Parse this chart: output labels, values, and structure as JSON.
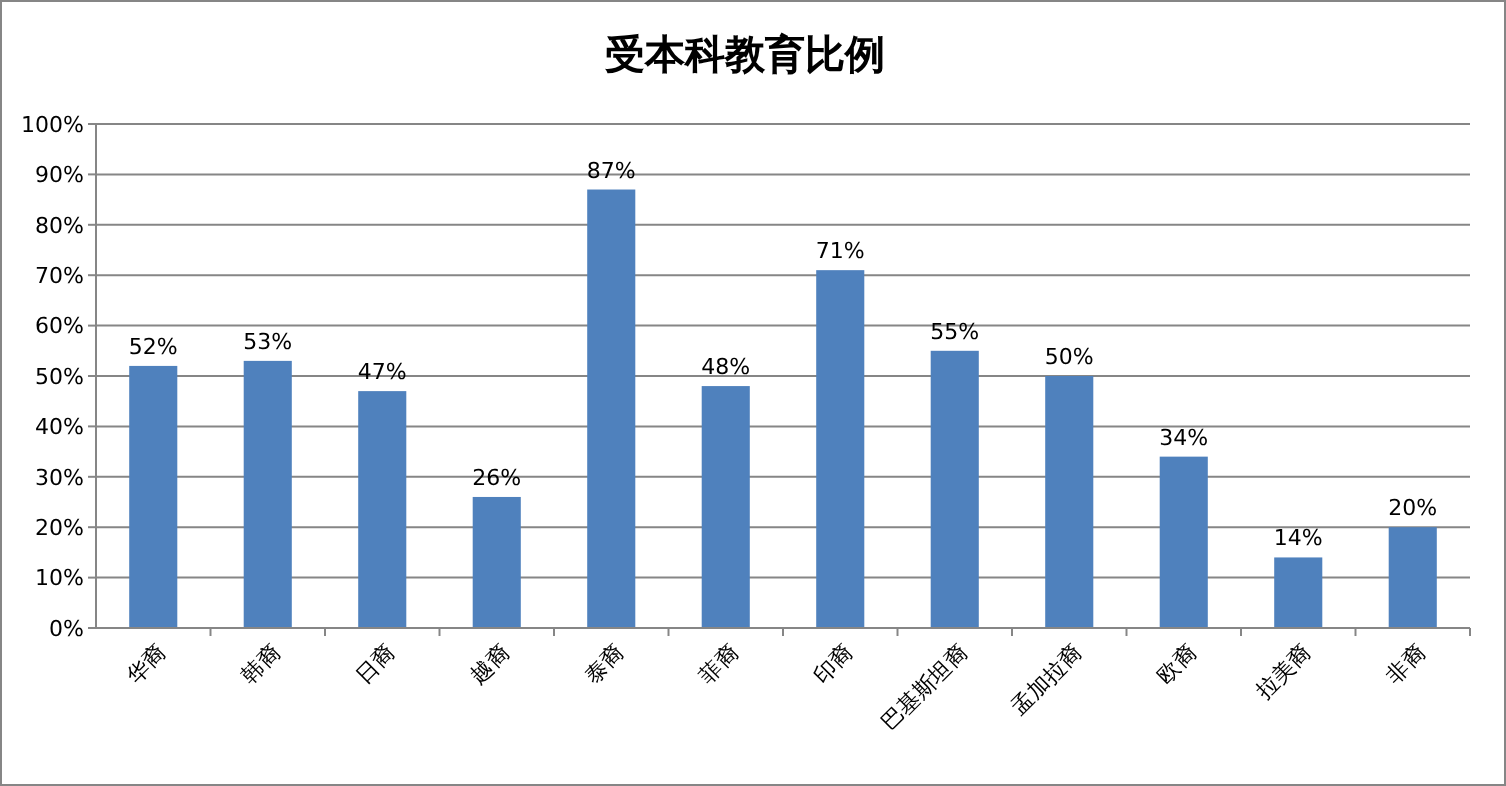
{
  "chart_data": {
    "type": "bar",
    "title": "受本科教育比例",
    "categories": [
      "华裔",
      "韩裔",
      "日裔",
      "越裔",
      "泰裔",
      "菲裔",
      "印裔",
      "巴基斯坦裔",
      "孟加拉裔",
      "欧裔",
      "拉美裔",
      "非裔"
    ],
    "values": [
      52,
      53,
      47,
      26,
      87,
      48,
      71,
      55,
      50,
      34,
      14,
      20
    ],
    "value_labels": [
      "52%",
      "53%",
      "47%",
      "26%",
      "87%",
      "48%",
      "71%",
      "55%",
      "50%",
      "34%",
      "14%",
      "20%"
    ],
    "color": "#4f81bd",
    "ylim": [
      0,
      100
    ],
    "yticks": [
      {
        "value": 0,
        "label": "0%"
      },
      {
        "value": 10,
        "label": "10%"
      },
      {
        "value": 20,
        "label": "20%"
      },
      {
        "value": 30,
        "label": "30%"
      },
      {
        "value": 40,
        "label": "40%"
      },
      {
        "value": 50,
        "label": "50%"
      },
      {
        "value": 60,
        "label": "60%"
      },
      {
        "value": 70,
        "label": "70%"
      },
      {
        "value": 80,
        "label": "80%"
      },
      {
        "value": 90,
        "label": "90%"
      },
      {
        "value": 100,
        "label": "100%"
      }
    ],
    "grid": "y"
  }
}
